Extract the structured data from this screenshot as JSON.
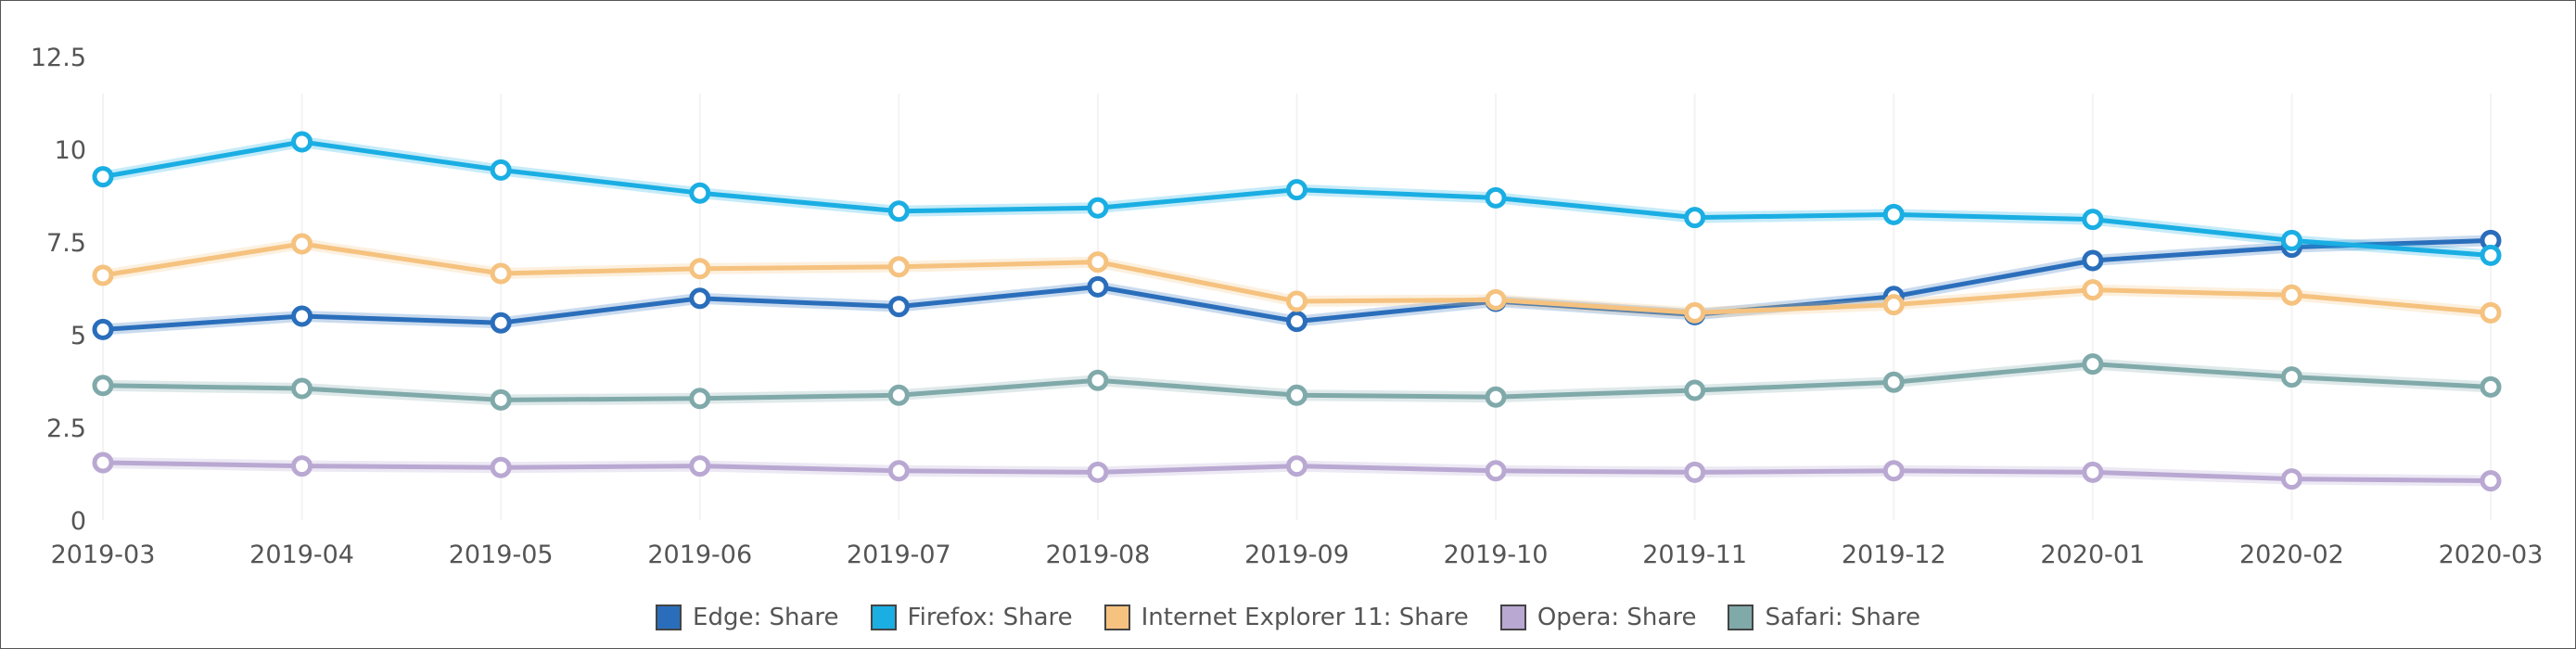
{
  "chart_data": {
    "type": "line",
    "title": "",
    "xlabel": "",
    "ylabel": "",
    "ylim": [
      0,
      12.5
    ],
    "yticks": [
      "0",
      "2.5",
      "5",
      "7.5",
      "10",
      "12.5"
    ],
    "grid": "vertical faint",
    "legend_position": "bottom",
    "x": [
      "2019-03",
      "2019-04",
      "2019-05",
      "2019-06",
      "2019-07",
      "2019-08",
      "2019-09",
      "2019-10",
      "2019-11",
      "2019-12",
      "2020-01",
      "2020-02",
      "2020-03"
    ],
    "series": [
      {
        "name": "Edge: Share",
        "color": "#2a6ebb",
        "values": [
          5.14,
          5.5,
          5.32,
          5.98,
          5.76,
          6.29,
          5.36,
          5.9,
          5.54,
          6.03,
          7.0,
          7.36,
          7.54
        ]
      },
      {
        "name": "Firefox: Share",
        "color": "#1aaee3",
        "values": [
          9.26,
          10.2,
          9.44,
          8.82,
          8.33,
          8.42,
          8.91,
          8.69,
          8.16,
          8.24,
          8.11,
          7.54,
          7.14
        ]
      },
      {
        "name": "Internet Explorer 11: Share",
        "color": "#f5c27f",
        "values": [
          6.6,
          7.45,
          6.65,
          6.78,
          6.83,
          6.96,
          5.9,
          5.94,
          5.59,
          5.81,
          6.21,
          6.07,
          5.59
        ]
      },
      {
        "name": "Opera: Share",
        "color": "#b9a8d2",
        "values": [
          1.55,
          1.46,
          1.42,
          1.46,
          1.33,
          1.29,
          1.46,
          1.33,
          1.29,
          1.33,
          1.29,
          1.11,
          1.06
        ]
      },
      {
        "name": "Safari: Share",
        "color": "#80a9aa",
        "values": [
          3.63,
          3.55,
          3.24,
          3.28,
          3.37,
          3.77,
          3.37,
          3.32,
          3.5,
          3.72,
          4.21,
          3.86,
          3.59
        ]
      }
    ]
  }
}
